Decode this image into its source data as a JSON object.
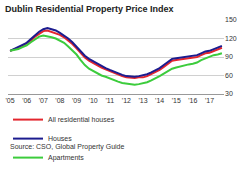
{
  "chart_data": {
    "type": "line",
    "title": "Dublin Residential Property Price Index",
    "source": "Source: CSO, Global Property Guide",
    "categories": [
      "'05",
      null,
      null,
      null,
      "'06",
      null,
      null,
      null,
      "'07",
      null,
      null,
      null,
      "'08",
      null,
      null,
      null,
      "'09",
      null,
      null,
      null,
      "'10",
      null,
      null,
      null,
      "'11",
      null,
      null,
      null,
      "'12",
      null,
      null,
      null,
      "'13",
      null,
      null,
      null,
      "'14",
      null,
      null,
      null,
      "'15",
      null,
      null,
      null,
      "'16",
      null,
      null,
      null,
      "'17",
      null,
      null,
      null
    ],
    "series": [
      {
        "name": "All residential houses",
        "color": "#e3262e",
        "values": [
          100,
          102,
          105,
          108,
          112,
          117,
          123,
          128,
          132,
          133,
          131,
          129,
          126,
          122,
          117,
          111,
          104,
          96,
          89,
          84,
          80,
          76,
          73,
          70,
          67,
          64,
          62,
          59,
          57,
          56,
          56,
          57,
          57,
          59,
          62,
          65,
          69,
          74,
          79,
          84,
          85,
          86,
          87,
          88,
          88,
          90,
          93,
          96,
          97,
          100,
          102,
          105
        ]
      },
      {
        "name": "Houses",
        "color": "#1c1c8f",
        "values": [
          100,
          103,
          106,
          109,
          113,
          119,
          125,
          131,
          135,
          137,
          135,
          133,
          129,
          125,
          120,
          114,
          107,
          99,
          92,
          87,
          83,
          79,
          75,
          72,
          69,
          66,
          64,
          61,
          59,
          58,
          58,
          59,
          60,
          62,
          65,
          68,
          72,
          77,
          82,
          87,
          88,
          89,
          90,
          91,
          91,
          93,
          96,
          99,
          100,
          103,
          105,
          108
        ]
      },
      {
        "name": "Apartments",
        "color": "#3ccc3c",
        "values": [
          100,
          101,
          103,
          106,
          109,
          114,
          119,
          123,
          125,
          124,
          122,
          120,
          117,
          113,
          107,
          101,
          94,
          85,
          77,
          71,
          67,
          63,
          60,
          58,
          55,
          52,
          50,
          48,
          47,
          46,
          45,
          46,
          47,
          49,
          52,
          55,
          59,
          63,
          67,
          71,
          73,
          75,
          76,
          78,
          79,
          81,
          85,
          88,
          90,
          93,
          94,
          96
        ]
      }
    ],
    "ylim": [
      30,
      150
    ],
    "yticks": [
      30,
      60,
      90,
      120,
      150
    ],
    "grid": true,
    "legend": "bottom"
  }
}
